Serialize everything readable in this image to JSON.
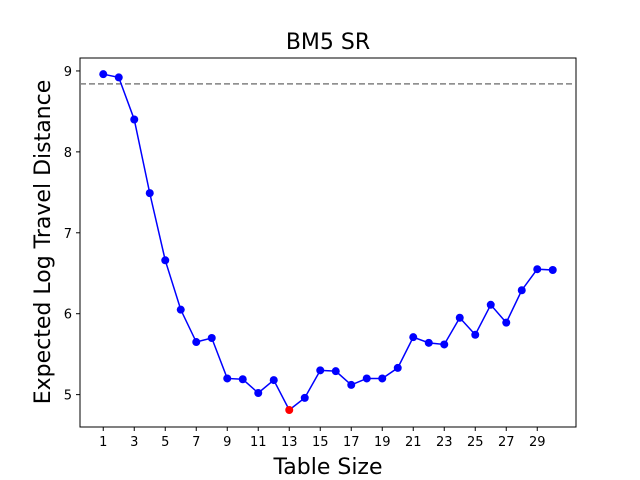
{
  "chart_data": {
    "type": "line",
    "title": "BM5 SR",
    "xlabel": "Table Size",
    "ylabel": "Expected Log Travel Distance",
    "x": [
      1,
      2,
      3,
      4,
      5,
      6,
      7,
      8,
      9,
      10,
      11,
      12,
      13,
      14,
      15,
      16,
      17,
      18,
      19,
      20,
      21,
      22,
      23,
      24,
      25,
      26,
      27,
      28,
      29,
      30
    ],
    "series": [
      {
        "values": [
          8.96,
          8.92,
          8.4,
          7.49,
          6.66,
          6.05,
          5.65,
          5.7,
          5.2,
          5.19,
          5.02,
          5.18,
          4.81,
          4.96,
          5.3,
          5.29,
          5.12,
          5.2,
          5.2,
          5.33,
          5.71,
          5.64,
          5.62,
          5.95,
          5.74,
          6.11,
          5.89,
          6.29,
          6.55,
          6.54
        ],
        "color": "#0000ff"
      }
    ],
    "highlight": {
      "x": 13,
      "y": 4.81,
      "color": "#ff0000"
    },
    "reference_line": {
      "y": 8.84,
      "style": "dashed",
      "color": "#808080"
    },
    "xticks": [
      1,
      3,
      5,
      7,
      9,
      11,
      13,
      15,
      17,
      19,
      21,
      23,
      25,
      27,
      29
    ],
    "yticks": [
      5,
      6,
      7,
      8,
      9
    ],
    "xlim": [
      -0.5,
      31.5
    ],
    "ylim": [
      4.6,
      9.16
    ],
    "grid": false,
    "legend": "none"
  }
}
